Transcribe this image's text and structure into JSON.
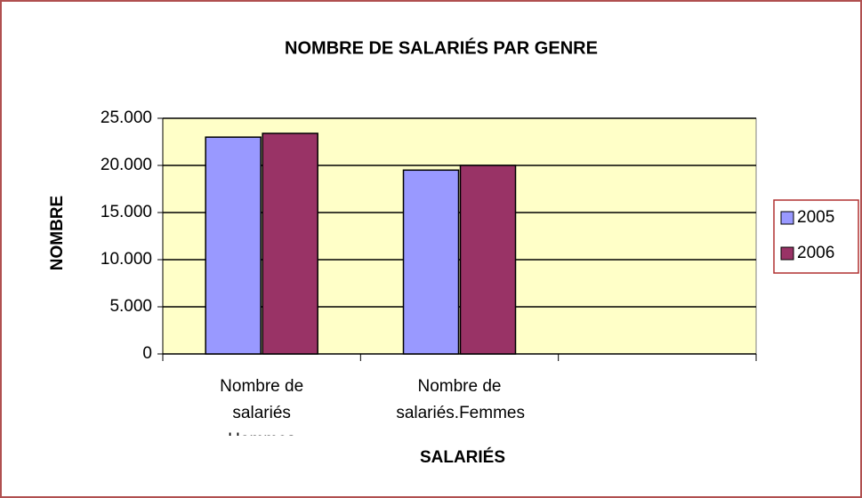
{
  "chart_data": {
    "type": "bar",
    "title": "NOMBRE DE SALARIÉS PAR GENRE",
    "x_label": "SALARIÉS",
    "y_label": "NOMBRE",
    "categories": [
      "Nombre de salariés Hommes",
      "Nombre de salariés.Femmes",
      null
    ],
    "series": [
      {
        "name": "2005",
        "color": "#9999ff",
        "values": [
          23000,
          19500,
          null
        ]
      },
      {
        "name": "2006",
        "color": "#993366",
        "values": [
          23400,
          20000,
          null
        ]
      }
    ],
    "ylim": [
      0,
      25000
    ],
    "yticks": [
      0,
      {
        "value": 5000,
        "label": "5.000"
      },
      {
        "value": 10000,
        "label": "10.000"
      },
      {
        "value": 15000,
        "label": "15.000"
      },
      {
        "value": 20000,
        "label": "20.000"
      },
      {
        "value": 25000,
        "label": "25.000"
      }
    ],
    "grid": true,
    "legend": "right",
    "plot_background": "#ffffc8"
  }
}
